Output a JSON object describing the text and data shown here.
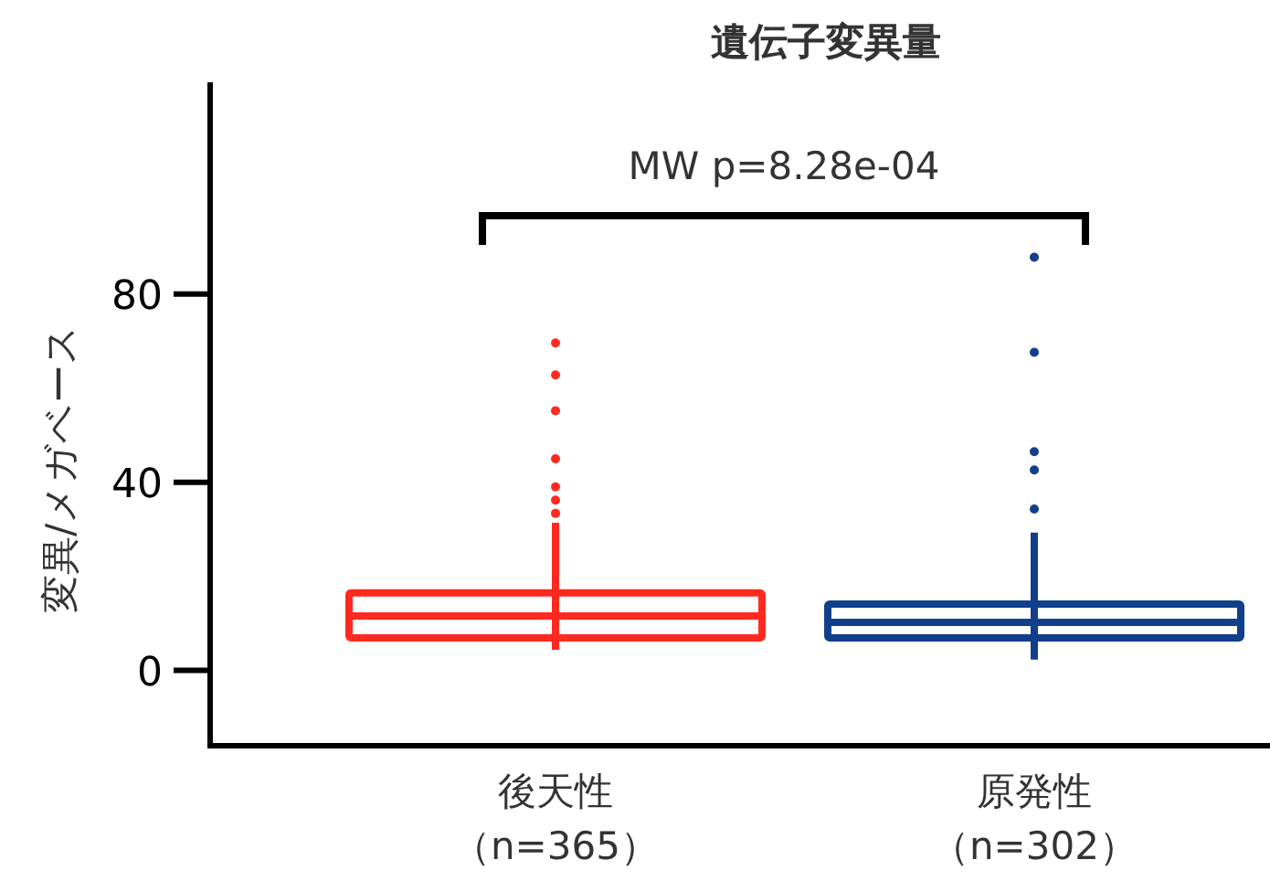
{
  "chart_data": {
    "type": "box",
    "title": "遺伝子変異量",
    "ylabel": "変異/メガベース",
    "categories": [
      "後天性（n=365）",
      "原発性（n=302）"
    ],
    "colors": [
      "#ff2a1f",
      "#123f8c"
    ],
    "boxes": [
      {
        "low": 4.4,
        "q1": 6.9,
        "median": 11.6,
        "q3": 16.5,
        "high": 31.4,
        "outliers": [
          33.4,
          36.2,
          39,
          45,
          55.2,
          62.8,
          69.6
        ]
      },
      {
        "low": 2.3,
        "q1": 6.9,
        "median": 10.2,
        "q3": 14.1,
        "high": 29.3,
        "outliers": [
          34.3,
          42.6,
          46.5,
          67.6,
          87.8
        ]
      }
    ],
    "ylim": [
      -16,
      125
    ],
    "yticks": [
      0,
      40,
      80
    ],
    "grid": false,
    "annotations": [
      "MW p=8.28e-04"
    ]
  }
}
